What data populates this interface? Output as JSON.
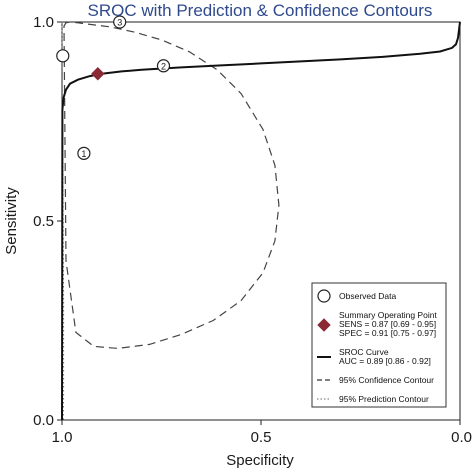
{
  "chart_data": {
    "type": "scatter",
    "title": "SROC with Prediction & Confidence Contours",
    "xlabel": "Specificity",
    "ylabel": "Sensitivity",
    "xlim": [
      1.0,
      0.0
    ],
    "ylim": [
      0.0,
      1.0
    ],
    "x_reversed": true,
    "x_ticks": [
      {
        "value": 1.0,
        "label": "1.0"
      },
      {
        "value": 0.5,
        "label": "0.5"
      },
      {
        "value": 0.0,
        "label": "0.0"
      }
    ],
    "y_ticks": [
      {
        "value": 0.0,
        "label": "0.0"
      },
      {
        "value": 0.5,
        "label": "0.5"
      },
      {
        "value": 1.0,
        "label": "1.0"
      }
    ],
    "grid": false,
    "legend_position": "bottom-right",
    "observed_studies": [
      {
        "label": "1",
        "specificity": 0.945,
        "sensitivity": 0.67
      },
      {
        "label": "2",
        "specificity": 0.745,
        "sensitivity": 0.89
      },
      {
        "label": "3",
        "specificity": 0.855,
        "sensitivity": 1.0
      },
      {
        "label": "",
        "specificity": 0.998,
        "sensitivity": 0.915
      }
    ],
    "summary_point": {
      "specificity": 0.91,
      "sensitivity": 0.87,
      "color": "#8b2a35"
    },
    "sroc_curve": {
      "specificity": [
        1.0,
        0.999,
        0.996,
        0.99,
        0.98,
        0.96,
        0.93,
        0.9,
        0.85,
        0.8,
        0.7,
        0.6,
        0.5,
        0.4,
        0.3,
        0.2,
        0.1,
        0.05,
        0.02,
        0.01,
        0.005,
        0.0
      ],
      "sensitivity": [
        0.0,
        0.78,
        0.81,
        0.83,
        0.845,
        0.855,
        0.864,
        0.87,
        0.876,
        0.88,
        0.886,
        0.891,
        0.896,
        0.901,
        0.906,
        0.912,
        0.92,
        0.926,
        0.935,
        0.944,
        0.96,
        1.0
      ]
    },
    "confidence_contour": {
      "specificity": [
        0.995,
        0.99,
        0.98,
        0.96,
        0.93,
        0.88,
        0.82,
        0.75,
        0.68,
        0.61,
        0.55,
        0.495,
        0.465,
        0.455,
        0.465,
        0.495,
        0.55,
        0.62,
        0.7,
        0.78,
        0.86,
        0.92,
        0.965,
        0.99,
        0.995
      ],
      "sensitivity": [
        0.99,
        0.998,
        1.0,
        0.998,
        0.994,
        0.988,
        0.975,
        0.955,
        0.925,
        0.88,
        0.82,
        0.73,
        0.64,
        0.54,
        0.45,
        0.37,
        0.3,
        0.25,
        0.215,
        0.19,
        0.18,
        0.185,
        0.22,
        0.4,
        0.99
      ]
    },
    "prediction_contour": {
      "specificity": [
        1.0,
        0.998,
        0.996,
        0.996,
        0.997,
        1.0
      ],
      "sensitivity": [
        1.0,
        0.7,
        0.3,
        0.05,
        0.0,
        0.0
      ]
    },
    "legend": [
      {
        "symbol": "circle",
        "lines": [
          "Observed Data"
        ]
      },
      {
        "symbol": "diamond",
        "lines": [
          "Summary Operating Point",
          "SENS = 0.87 [0.69 - 0.95]",
          "SPEC = 0.91 [0.75 - 0.97]"
        ]
      },
      {
        "symbol": "solid",
        "lines": [
          "SROC Curve",
          "AUC = 0.89 [0.86 - 0.92]"
        ]
      },
      {
        "symbol": "dashed",
        "lines": [
          "95% Confidence Contour"
        ]
      },
      {
        "symbol": "dotted",
        "lines": [
          "95% Prediction Contour"
        ]
      }
    ]
  }
}
